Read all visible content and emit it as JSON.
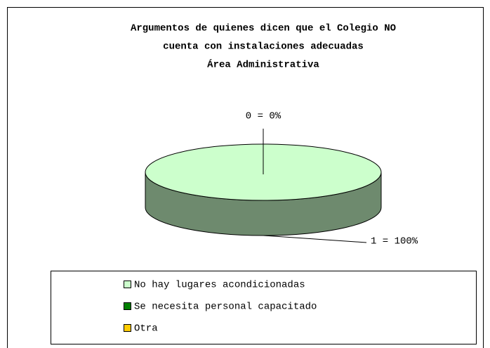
{
  "chart_data": {
    "type": "pie3d",
    "title": [
      "Argumentos de quienes dicen que el Colegio NO",
      "cuenta con instalaciones adecuadas",
      "Área Administrativa"
    ],
    "categories": [
      "No hay lugares acondicionadas",
      "Se necesita personal capacitado",
      "Otra"
    ],
    "values": [
      1,
      0,
      0
    ],
    "value_labels": [
      "1 = 100%",
      "0 = 0%",
      null
    ],
    "colors": [
      "#ccffcc",
      "#008000",
      "#ffcc00"
    ],
    "legend": "bottom"
  }
}
